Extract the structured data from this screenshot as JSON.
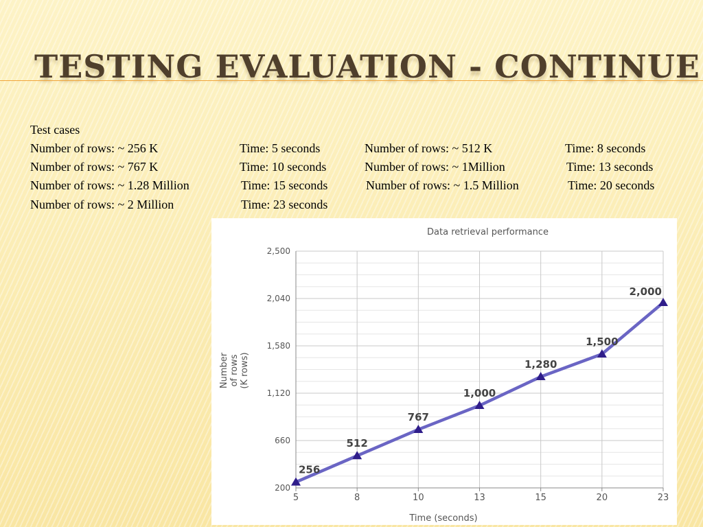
{
  "slide": {
    "title": "TESTING EVALUATION - CONTINUE",
    "heading": "Test cases",
    "rows": [
      [
        " Number of rows: ~ 256 K",
        "Time: 5 seconds",
        "Number of rows: ~ 512 K",
        "Time: 8 seconds"
      ],
      [
        "Number of rows: ~ 767 K",
        "Time: 10 seconds",
        "Number of rows: ~ 1Million",
        "Time: 13 seconds"
      ],
      [
        "Number of rows: ~ 1.28 Million",
        "Time: 15 seconds",
        "Number of rows: ~ 1.5 Million",
        "Time: 20 seconds"
      ],
      [
        "Number of rows: ~ 2 Million",
        "Time: 23 seconds"
      ]
    ]
  },
  "chart_data": {
    "type": "line",
    "title": "Data retrieval performance",
    "xlabel": "Time (seconds)",
    "ylabel_lines": [
      "Number",
      "of rows",
      "(K rows)"
    ],
    "categories": [
      "5",
      "8",
      "10",
      "13",
      "15",
      "20",
      "23"
    ],
    "values": [
      256,
      512,
      767,
      1000,
      1280,
      1500,
      2000
    ],
    "data_labels": [
      "256",
      "512",
      "767",
      "1,000",
      "1,280",
      "1,500",
      "2,000"
    ],
    "y_ticks": [
      200,
      660,
      1120,
      1580,
      2040,
      2500
    ],
    "y_tick_labels": [
      "200",
      "660",
      "1,120",
      "1,580",
      "2,040",
      "2,500"
    ],
    "ylim": [
      200,
      2500
    ],
    "grid": true,
    "legend": "none",
    "line_color": "#6a65c4",
    "marker_color": "#2f1d8a",
    "grid_color": "#c8c8c8",
    "minor_grid_color": "#e6e6e6"
  }
}
